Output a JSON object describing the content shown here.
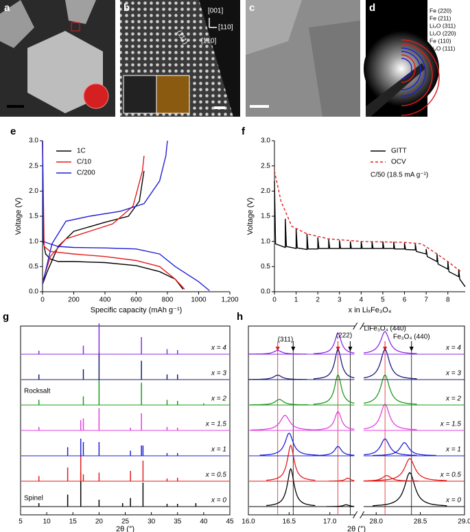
{
  "image_panels": [
    {
      "label": "a"
    },
    {
      "label": "b",
      "annotations": [
        "(111)",
        "[001]",
        "[110]",
        "[1̄10]"
      ]
    },
    {
      "label": "c"
    },
    {
      "label": "d",
      "annotations": [
        {
          "text": "Fe (220)",
          "color": "#e31a1c"
        },
        {
          "text": "Fe (211)",
          "color": "#e31a1c"
        },
        {
          "text": "Li₂O (311)",
          "color": "#1f1fd6"
        },
        {
          "text": "Li₂O (220)",
          "color": "#1f1fd6"
        },
        {
          "text": "Fe (110)",
          "color": "#e31a1c"
        },
        {
          "text": "Li₂O (111)",
          "color": "#1f1fd6"
        }
      ]
    }
  ],
  "chart_data": [
    {
      "type": "line",
      "panel_label": "e",
      "x_label": "Specific capacity (mAh g⁻¹)",
      "y_label": "Voltage (V)",
      "xlim": [
        0,
        1200
      ],
      "xticks": [
        0,
        200,
        400,
        600,
        800,
        1000,
        {
          "value": 1200,
          "label": "1,200"
        }
      ],
      "ylim": [
        0,
        3
      ],
      "yticks": [
        {
          "value": 0,
          "label": "0.0"
        },
        {
          "value": 0.5,
          "label": "0.5"
        },
        {
          "value": 1,
          "label": "1.0"
        },
        {
          "value": 1.5,
          "label": "1.5"
        },
        {
          "value": 2,
          "label": "2.0"
        },
        {
          "value": 2.5,
          "label": "2.5"
        },
        {
          "value": 3,
          "label": "3.0"
        }
      ],
      "series": [
        {
          "name": "1C",
          "color": "#000000",
          "x": [
            0,
            5,
            20,
            50,
            100,
            200,
            400,
            600,
            750,
            850,
            900,
            900,
            0,
            30,
            100,
            200,
            400,
            550,
            620,
            650
          ],
          "values": [
            3.0,
            1.0,
            0.75,
            0.65,
            0.6,
            0.6,
            0.58,
            0.52,
            0.4,
            0.25,
            0.05,
            null,
            0.15,
            0.4,
            0.9,
            1.2,
            1.38,
            1.5,
            1.8,
            2.4
          ]
        },
        {
          "name": "C/10",
          "color": "#e31a1c",
          "x": [
            0,
            10,
            50,
            200,
            400,
            600,
            750,
            850,
            910,
            910,
            0,
            50,
            150,
            300,
            450,
            580,
            640,
            650
          ],
          "values": [
            3.0,
            0.9,
            0.8,
            0.75,
            0.7,
            0.62,
            0.5,
            0.25,
            0.05,
            null,
            0.2,
            0.7,
            1.05,
            1.2,
            1.35,
            1.7,
            2.4,
            2.7
          ]
        },
        {
          "name": "C/200",
          "color": "#1f1fd6",
          "x": [
            0,
            5,
            30,
            100,
            200,
            400,
            600,
            750,
            850,
            1000,
            1070,
            1070,
            0,
            60,
            150,
            300,
            500,
            650,
            750,
            790,
            800
          ],
          "values": [
            3.0,
            1.0,
            0.97,
            0.9,
            0.88,
            0.87,
            0.85,
            0.75,
            0.5,
            0.2,
            0.02,
            null,
            0.15,
            0.95,
            1.4,
            1.5,
            1.6,
            1.75,
            2.2,
            2.7,
            3.0
          ]
        }
      ]
    },
    {
      "type": "line",
      "panel_label": "f",
      "x_label": "x in LiₓFe₃O₄",
      "y_label": "Voltage (V)",
      "annotation": "C/50 (18.5 mA g⁻¹)",
      "xlim": [
        0,
        8.8
      ],
      "xticks": [
        0,
        1,
        2,
        3,
        4,
        5,
        6,
        7,
        8
      ],
      "ylim": [
        0,
        3
      ],
      "yticks": [
        {
          "value": 0,
          "label": "0.0"
        },
        {
          "value": 0.5,
          "label": "0.5"
        },
        {
          "value": 1,
          "label": "1.0"
        },
        {
          "value": 1.5,
          "label": "1.5"
        },
        {
          "value": 2,
          "label": "2.0"
        },
        {
          "value": 2.5,
          "label": "2.5"
        },
        {
          "value": 3,
          "label": "3.0"
        }
      ],
      "series": [
        {
          "name": "GITT",
          "color": "#000000",
          "x": [
            0,
            0.05,
            0.5,
            0.5,
            0.55,
            1,
            1,
            1.05,
            1.5,
            1.5,
            1.55,
            2,
            2,
            2.05,
            2.5,
            2.5,
            2.55,
            3,
            3,
            3.05,
            3.5,
            3.5,
            3.55,
            4,
            4,
            4.05,
            4.5,
            4.5,
            4.55,
            5,
            5,
            5.05,
            5.5,
            5.5,
            5.55,
            6,
            6,
            6.05,
            6.5,
            6.5,
            6.55,
            7,
            7,
            7.05,
            7.5,
            7.5,
            7.55,
            8,
            8,
            8.05,
            8.5,
            8.5,
            8.55,
            8.8
          ],
          "values": [
            2.2,
            0.95,
            0.88,
            1.45,
            0.9,
            0.86,
            1.25,
            0.87,
            0.84,
            1.15,
            0.85,
            0.85,
            1.08,
            0.86,
            0.86,
            1.04,
            0.86,
            0.86,
            1.02,
            0.86,
            0.86,
            1.0,
            0.86,
            0.86,
            1.0,
            0.86,
            0.86,
            1.0,
            0.86,
            0.86,
            1.0,
            0.86,
            0.86,
            0.99,
            0.85,
            0.85,
            0.97,
            0.84,
            0.83,
            0.95,
            0.8,
            0.75,
            0.85,
            0.7,
            0.6,
            0.75,
            0.55,
            0.45,
            0.6,
            0.4,
            0.3,
            0.45,
            0.25,
            0.1
          ]
        },
        {
          "name": "OCV",
          "color": "#e31a1c",
          "dashed": true,
          "x": [
            0,
            0.3,
            0.8,
            1.5,
            2.5,
            4,
            6,
            6.8,
            7.5,
            8,
            8.6
          ],
          "values": [
            2.4,
            1.8,
            1.3,
            1.15,
            1.05,
            1.0,
            0.98,
            0.95,
            0.75,
            0.6,
            0.4
          ]
        }
      ]
    },
    {
      "type": "sticks",
      "panel_label": "g",
      "x_label": "2θ (°)",
      "annotations": [
        "Spinel",
        "Rocksalt"
      ],
      "xlim": [
        5,
        45
      ],
      "xticks": [
        5,
        10,
        15,
        20,
        25,
        30,
        35,
        40,
        45
      ],
      "series": [
        {
          "name": "x = 0",
          "color": "#000000",
          "x": [
            8.5,
            14,
            16.5,
            20,
            24.5,
            26,
            28.4,
            33,
            35,
            38.5
          ],
          "values": [
            0.1,
            0.35,
            1.0,
            0.2,
            0.1,
            0.25,
            0.7,
            0.08,
            0.08,
            0.1
          ]
        },
        {
          "name": "x = 0.5",
          "color": "#e31a1c",
          "x": [
            8.5,
            14,
            16.5,
            17,
            20,
            26,
            28.4,
            33,
            35
          ],
          "values": [
            0.15,
            0.4,
            0.8,
            0.2,
            0.25,
            0.3,
            0.6,
            0.08,
            0.1
          ]
        },
        {
          "name": "x = 1",
          "color": "#1f1fd6",
          "x": [
            14,
            16.5,
            17,
            20,
            26,
            28.1,
            28.4,
            33,
            35
          ],
          "values": [
            0.25,
            0.5,
            0.4,
            0.4,
            0.15,
            0.3,
            0.3,
            0.08,
            0.08
          ]
        },
        {
          "name": "x = 1.5",
          "color": "#e040e0",
          "x": [
            8.5,
            16.5,
            17,
            20,
            26,
            28.1,
            33,
            35
          ],
          "values": [
            0.1,
            0.3,
            0.35,
            0.65,
            0.08,
            0.5,
            0.1,
            0.08
          ]
        },
        {
          "name": "x = 2",
          "color": "#1a9a1a",
          "x": [
            8.5,
            17,
            20,
            28.1,
            33,
            35,
            40
          ],
          "values": [
            0.15,
            0.25,
            0.75,
            0.65,
            0.15,
            0.12,
            0.05
          ]
        },
        {
          "name": "x = 3",
          "color": "#1a1a7a",
          "x": [
            8.5,
            17,
            20,
            28.1,
            33,
            35
          ],
          "values": [
            0.15,
            0.3,
            0.8,
            0.55,
            0.15,
            0.15
          ]
        },
        {
          "name": "x = 4",
          "color": "#8a2be2",
          "x": [
            8.5,
            17,
            20,
            28.1,
            33,
            35
          ],
          "values": [
            0.1,
            0.25,
            0.9,
            0.5,
            0.15,
            0.12
          ]
        }
      ]
    },
    {
      "type": "peaks",
      "panel_label": "h",
      "x_label": "2θ (°)",
      "annotations": [
        "(311)",
        "(222)",
        "LiFe₃O₄ (440)",
        "Fe₃O₄ (440)"
      ],
      "xlim_segments": [
        [
          16.0,
          17.3
        ],
        [
          27.85,
          29.0
        ]
      ],
      "xticks": [
        {
          "value": 16,
          "label": "16.0"
        },
        {
          "value": 16.5,
          "label": "16.5"
        },
        {
          "value": 17,
          "label": "17.0"
        },
        {
          "value": 28,
          "label": "28.0"
        },
        {
          "value": 28.5,
          "label": "28.5"
        },
        {
          "value": 29,
          "label": "29.0"
        }
      ],
      "ref_lines": [
        {
          "value": 16.36,
          "color": "#e31a1c"
        },
        {
          "value": 16.55,
          "color": "#000000"
        },
        {
          "value": 17.1,
          "color": "#e31a1c"
        },
        {
          "value": 17.25,
          "color": "#000000"
        },
        {
          "value": 28.1,
          "color": "#e31a1c"
        },
        {
          "value": 28.4,
          "color": "#000000"
        }
      ],
      "series": [
        {
          "name": "x = 0",
          "color": "#000000",
          "peaks": [
            {
              "center": 16.52,
              "height": 1.0,
              "width": 0.05
            },
            {
              "center": 17.2,
              "height": 0.05,
              "width": 0.04
            },
            {
              "center": 28.38,
              "height": 0.9,
              "width": 0.07
            }
          ]
        },
        {
          "name": "x = 0.5",
          "color": "#e31a1c",
          "peaks": [
            {
              "center": 16.52,
              "height": 0.95,
              "width": 0.05
            },
            {
              "center": 17.22,
              "height": 0.08,
              "width": 0.04
            },
            {
              "center": 28.12,
              "height": 0.15,
              "width": 0.06
            },
            {
              "center": 28.38,
              "height": 0.6,
              "width": 0.07
            }
          ]
        },
        {
          "name": "x = 1",
          "color": "#1f1fd6",
          "peaks": [
            {
              "center": 16.5,
              "height": 0.6,
              "width": 0.06
            },
            {
              "center": 17.1,
              "height": 0.25,
              "width": 0.05
            },
            {
              "center": 28.1,
              "height": 0.45,
              "width": 0.06
            },
            {
              "center": 28.32,
              "height": 0.35,
              "width": 0.06
            }
          ]
        },
        {
          "name": "x = 1.5",
          "color": "#e040e0",
          "peaks": [
            {
              "center": 16.45,
              "height": 0.4,
              "width": 0.07
            },
            {
              "center": 17.1,
              "height": 0.5,
              "width": 0.05
            },
            {
              "center": 28.1,
              "height": 0.7,
              "width": 0.06
            }
          ]
        },
        {
          "name": "x = 2",
          "color": "#1a9a1a",
          "peaks": [
            {
              "center": 16.38,
              "height": 0.15,
              "width": 0.06
            },
            {
              "center": 17.1,
              "height": 0.8,
              "width": 0.05
            },
            {
              "center": 28.1,
              "height": 0.8,
              "width": 0.06
            }
          ]
        },
        {
          "name": "x = 3",
          "color": "#1a1a7a",
          "peaks": [
            {
              "center": 16.36,
              "height": 0.12,
              "width": 0.06
            },
            {
              "center": 17.1,
              "height": 0.8,
              "width": 0.05
            },
            {
              "center": 28.1,
              "height": 0.8,
              "width": 0.06
            }
          ]
        },
        {
          "name": "x = 4",
          "color": "#8a2be2",
          "peaks": [
            {
              "center": 16.36,
              "height": 0.1,
              "width": 0.06
            },
            {
              "center": 17.1,
              "height": 0.55,
              "width": 0.05
            },
            {
              "center": 28.1,
              "height": 0.6,
              "width": 0.06
            }
          ]
        }
      ]
    }
  ]
}
